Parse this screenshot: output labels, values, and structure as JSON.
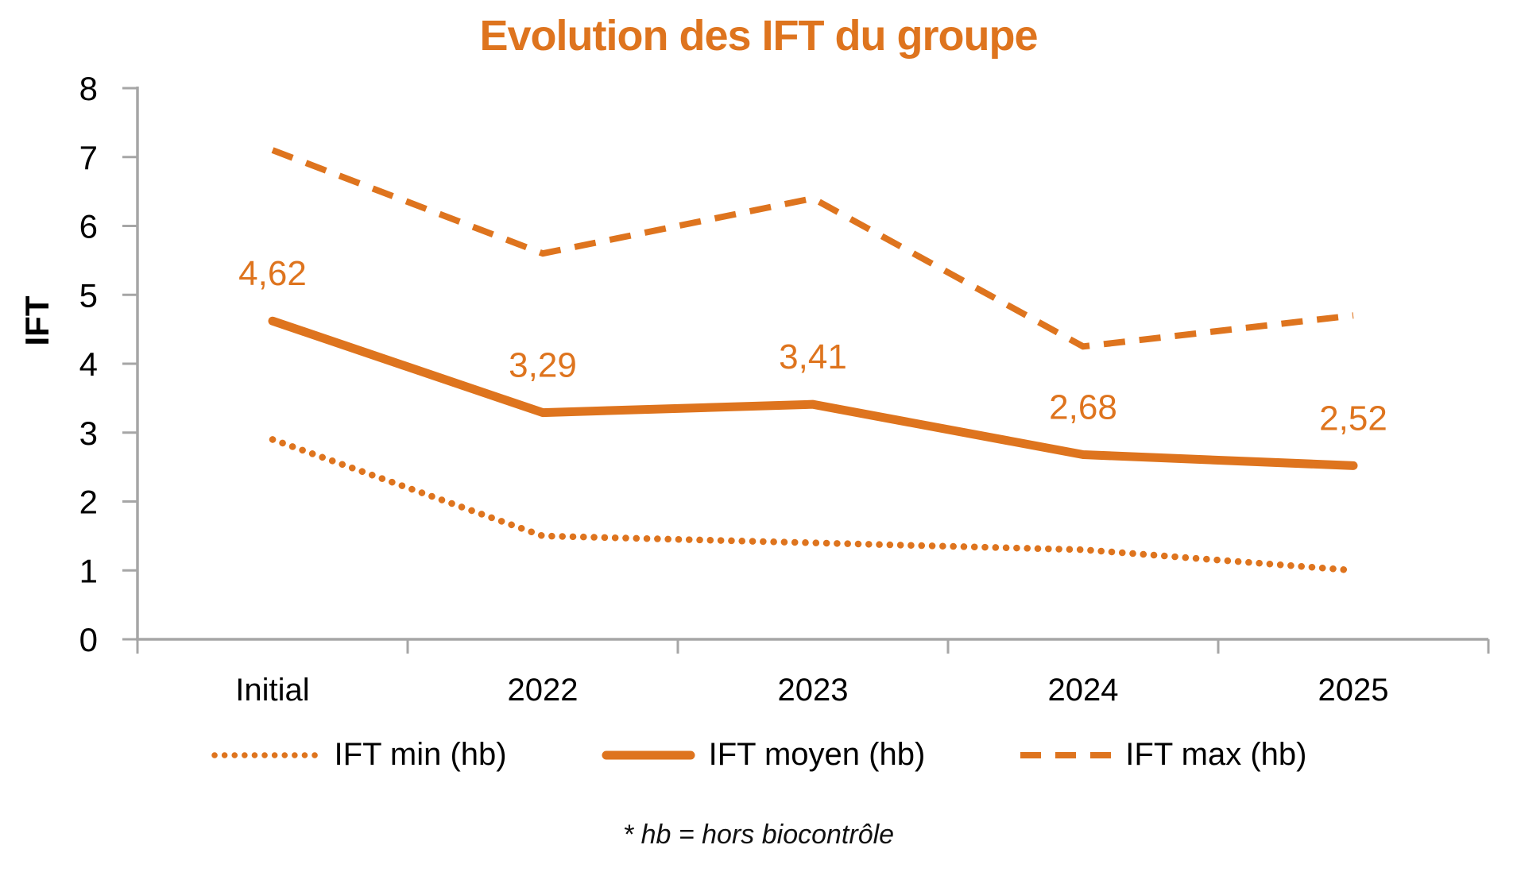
{
  "title": "Evolution des IFT du groupe",
  "footnote": "* hb = hors biocontrôle",
  "colors": {
    "accent": "#DE741E",
    "axis": "#A6A6A6",
    "text": "#000000"
  },
  "chart_data": {
    "type": "line",
    "title": "Evolution des IFT du groupe",
    "xlabel": "",
    "ylabel": "IFT",
    "ylim": [
      0,
      8
    ],
    "yticks": [
      0,
      1,
      2,
      3,
      4,
      5,
      6,
      7,
      8
    ],
    "grid": false,
    "legend_position": "bottom",
    "categories": [
      "Initial",
      "2022",
      "2023",
      "2024",
      "2025"
    ],
    "series": [
      {
        "name": "IFT min (hb)",
        "style": "dotted",
        "values": [
          2.9,
          1.5,
          1.4,
          1.3,
          1.0
        ],
        "labels": []
      },
      {
        "name": "IFT moyen (hb)",
        "style": "solid",
        "values": [
          4.62,
          3.29,
          3.41,
          2.68,
          2.52
        ],
        "labels": [
          "4,62",
          "3,29",
          "3,41",
          "2,68",
          "2,52"
        ]
      },
      {
        "name": "IFT max (hb)",
        "style": "dashed",
        "values": [
          7.1,
          5.6,
          6.4,
          4.25,
          4.7
        ],
        "labels": []
      }
    ]
  },
  "legend": {
    "items": [
      {
        "label": "IFT min (hb)",
        "style": "dotted"
      },
      {
        "label": "IFT moyen (hb)",
        "style": "solid"
      },
      {
        "label": "IFT max (hb)",
        "style": "dashed"
      }
    ]
  }
}
